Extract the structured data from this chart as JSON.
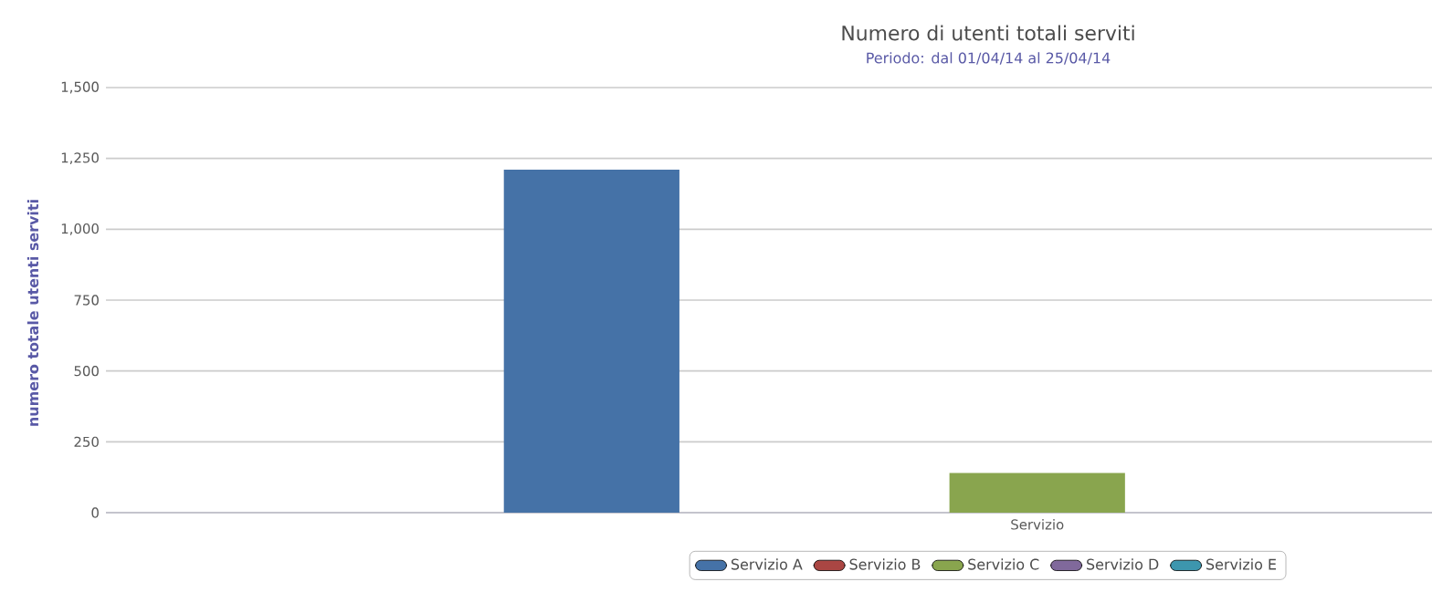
{
  "chart_data": {
    "type": "bar",
    "title": "Numero di utenti totali serviti",
    "subtitle": "Periodo: dal 01/04/14 al 25/04/14",
    "ylabel": "numero totale utenti serviti",
    "categories": [
      "Servizio"
    ],
    "series": [
      {
        "name": "Servizio A",
        "color": "#4572a7",
        "values": [
          1210
        ]
      },
      {
        "name": "Servizio B",
        "color": "#aa4643",
        "values": [
          0
        ]
      },
      {
        "name": "Servizio C",
        "color": "#89a54e",
        "values": [
          140
        ]
      },
      {
        "name": "Servizio D",
        "color": "#80699b",
        "values": [
          0
        ]
      },
      {
        "name": "Servizio E",
        "color": "#3d96ae",
        "values": [
          0
        ]
      }
    ],
    "ylim": [
      0,
      1500
    ],
    "yticks": [
      0,
      {
        "value": 250,
        "label": "250"
      },
      {
        "value": 500,
        "label": "500"
      },
      {
        "value": 750,
        "label": "750"
      },
      {
        "value": 1000,
        "label": "1,000"
      },
      {
        "value": 1250,
        "label": "1,250"
      },
      {
        "value": 1500,
        "label": "1,500"
      }
    ],
    "grid": "y",
    "legend": "bottom"
  }
}
